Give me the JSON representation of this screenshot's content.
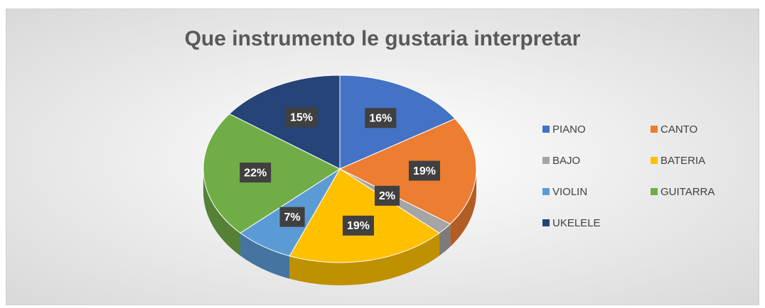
{
  "chart_data": {
    "type": "pie",
    "title": "Que instrumento le gustaria interpretar",
    "categories": [
      "PIANO",
      "CANTO",
      "BAJO",
      "BATERIA",
      "VIOLIN",
      "GUITARRA",
      "UKELELE"
    ],
    "values": [
      16,
      19,
      2,
      19,
      7,
      22,
      15
    ],
    "value_labels": [
      "16%",
      "19%",
      "2%",
      "19%",
      "7%",
      "22%",
      "15%"
    ],
    "colors": [
      "#4472c4",
      "#ed7d31",
      "#a5a5a5",
      "#ffc000",
      "#5b9bd5",
      "#70ad47",
      "#264478"
    ],
    "legend": "right"
  }
}
